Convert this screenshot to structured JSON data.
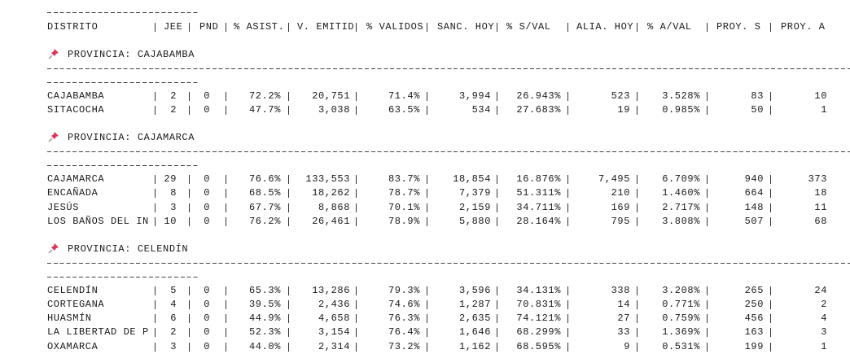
{
  "table": {
    "columns": [
      "DISTRITO",
      "JEE",
      "PND",
      "% ASIST.",
      "V. EMITID",
      "% VALIDOS",
      "SANC. HOY",
      "% S/VAL",
      "ALIA. HOY",
      "% A/VAL",
      "PROY. S",
      "PROY. A"
    ],
    "provinces": [
      {
        "title": "PROVINCIA: CAJABAMBA",
        "rows": [
          [
            "CAJABAMBA",
            "2",
            "0",
            "72.2%",
            "20,751",
            "71.4%",
            "3,994",
            "26.943%",
            "523",
            "3.528%",
            "83",
            "10"
          ],
          [
            "SITACOCHA",
            "2",
            "0",
            "47.7%",
            "3,038",
            "63.5%",
            "534",
            "27.683%",
            "19",
            "0.985%",
            "50",
            "1"
          ]
        ]
      },
      {
        "title": "PROVINCIA: CAJAMARCA",
        "rows": [
          [
            "CAJAMARCA",
            "29",
            "0",
            "76.6%",
            "133,553",
            "83.7%",
            "18,854",
            "16.876%",
            "7,495",
            "6.709%",
            "940",
            "373"
          ],
          [
            "ENCAÑADA",
            "8",
            "0",
            "68.5%",
            "18,262",
            "78.7%",
            "7,379",
            "51.311%",
            "210",
            "1.460%",
            "664",
            "18"
          ],
          [
            "JESÚS",
            "3",
            "0",
            "67.7%",
            "8,868",
            "70.1%",
            "2,159",
            "34.711%",
            "169",
            "2.717%",
            "148",
            "11"
          ],
          [
            "LOS BAÑOS DEL IN",
            "10",
            "0",
            "76.2%",
            "26,461",
            "78.9%",
            "5,880",
            "28.164%",
            "795",
            "3.808%",
            "507",
            "68"
          ]
        ]
      },
      {
        "title": "PROVINCIA: CELENDÍN",
        "rows": [
          [
            "CELENDÍN",
            "5",
            "0",
            "65.3%",
            "13,286",
            "79.3%",
            "3,596",
            "34.131%",
            "338",
            "3.208%",
            "265",
            "24"
          ],
          [
            "CORTEGANA",
            "4",
            "0",
            "39.5%",
            "2,436",
            "74.6%",
            "1,287",
            "70.831%",
            "14",
            "0.771%",
            "250",
            "2"
          ],
          [
            "HUASMÍN",
            "6",
            "0",
            "44.9%",
            "4,658",
            "76.3%",
            "2,635",
            "74.121%",
            "27",
            "0.759%",
            "456",
            "4"
          ],
          [
            "LA LIBERTAD DE P",
            "2",
            "0",
            "52.3%",
            "3,154",
            "76.4%",
            "1,646",
            "68.299%",
            "33",
            "1.369%",
            "163",
            "3"
          ],
          [
            "OXAMARCA",
            "3",
            "0",
            "44.0%",
            "2,314",
            "73.2%",
            "1,162",
            "68.595%",
            "9",
            "0.531%",
            "199",
            "1"
          ]
        ]
      }
    ]
  }
}
